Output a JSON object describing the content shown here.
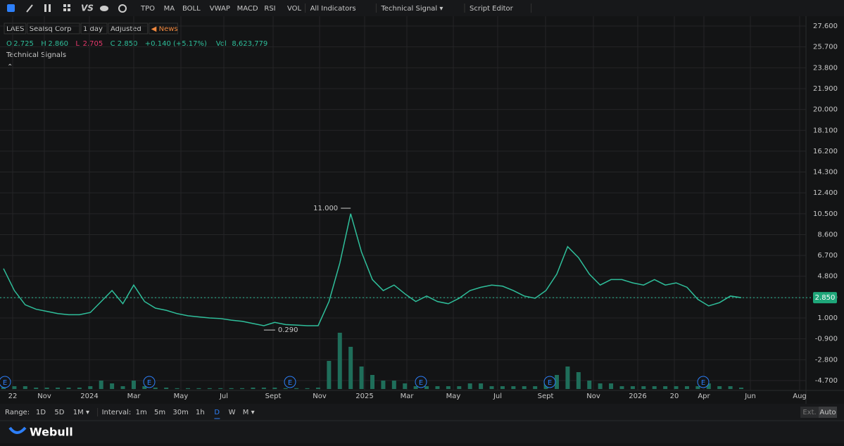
{
  "toolbar": {
    "items": [
      "TPO",
      "MA",
      "BOLL",
      "VWAP",
      "MACD",
      "RSI",
      "VOL",
      "All Indicators",
      "Technical Signal ▾",
      "Script Editor"
    ]
  },
  "info": {
    "symbol": "LAES",
    "name": "Sealsq Corp",
    "period": "1 day",
    "adjust": "Adjusted",
    "news": "News"
  },
  "quote": {
    "o_label": "O",
    "o": "2.725",
    "h_label": "H",
    "h": "2.860",
    "l_label": "L",
    "l": "2.705",
    "c_label": "C",
    "c": "2.850",
    "change": "+0.140 (+5.17%)",
    "vol_label": "Vol",
    "vol": "8,623,779"
  },
  "indicator": "Technical Signals",
  "chart_data": {
    "type": "line",
    "color": "#2fbf9b",
    "volume_color": "#1f6e5a",
    "values": [
      5.5,
      3.5,
      2.2,
      1.8,
      1.6,
      1.4,
      1.3,
      1.3,
      1.5,
      2.5,
      3.5,
      2.3,
      4.0,
      2.5,
      1.9,
      1.7,
      1.4,
      1.2,
      1.1,
      1.0,
      0.95,
      0.8,
      0.7,
      0.5,
      0.3,
      0.6,
      0.4,
      0.35,
      0.3,
      0.3,
      2.5,
      6,
      10.5,
      7,
      4.5,
      3.5,
      4,
      3.2,
      2.5,
      3.0,
      2.5,
      2.3,
      2.8,
      3.5,
      3.8,
      4.0,
      3.9,
      3.5,
      3.0,
      2.8,
      3.5,
      5,
      7.5,
      6.5,
      5,
      4,
      4.5,
      4.5,
      4.2,
      4.0,
      4.5,
      4.0,
      4.2,
      3.8,
      2.7,
      2.1,
      2.4,
      3.0,
      2.85
    ],
    "volume": [
      2,
      1,
      1,
      0.5,
      0.5,
      0.5,
      0.5,
      0.5,
      1,
      3,
      2,
      1,
      3,
      1,
      0.5,
      0.5,
      0.3,
      0.3,
      0.3,
      0.3,
      0.3,
      0.3,
      0.3,
      0.5,
      0.5,
      0.5,
      0.3,
      0.3,
      0.3,
      0.5,
      10,
      20,
      15,
      8,
      5,
      3,
      3,
      2,
      1,
      1,
      1,
      1,
      1,
      2,
      2,
      1,
      1,
      1,
      1,
      1,
      3,
      5,
      8,
      6,
      3,
      2,
      2,
      1,
      1,
      1,
      1,
      1,
      1,
      1,
      1,
      2,
      1,
      1,
      0.5
    ],
    "ylim": [
      -5.6,
      28.5
    ],
    "yticks": [
      {
        "value": 27.6,
        "label": "27.600"
      },
      {
        "value": 25.7,
        "label": "25.700"
      },
      {
        "value": 23.8,
        "label": "23.800"
      },
      {
        "value": 21.9,
        "label": "21.900"
      },
      {
        "value": 20,
        "label": "20.000"
      },
      {
        "value": 18.1,
        "label": "18.100"
      },
      {
        "value": 16.2,
        "label": "16.200"
      },
      {
        "value": 14.3,
        "label": "14.300"
      },
      {
        "value": 12.4,
        "label": "12.400"
      },
      {
        "value": 10.5,
        "label": "10.500"
      },
      {
        "value": 8.6,
        "label": "8.600"
      },
      {
        "value": 6.7,
        "label": "6.700"
      },
      {
        "value": 4.8,
        "label": "4.800"
      },
      {
        "value": 2.85,
        "label": "2.850"
      },
      {
        "value": 1,
        "label": "1.000"
      },
      {
        "value": -0.9,
        "label": "-0.900"
      },
      {
        "value": -2.8,
        "label": "-2.800"
      },
      {
        "value": -4.7,
        "label": "-4.700"
      }
    ],
    "x_labels": [
      "22",
      "Nov",
      "2024",
      "Mar",
      "May",
      "Jul",
      "Sept",
      "Nov",
      "2025",
      "Mar",
      "May",
      "Jul",
      "Sept",
      "Nov",
      "2026",
      "20",
      "Apr",
      "Jun",
      "Aug"
    ],
    "high": {
      "value": 11,
      "label": "11.000"
    },
    "low": {
      "value": 0.29,
      "label": "0.290"
    },
    "earnings": [
      "E",
      "E",
      "E",
      "E",
      "E",
      "E"
    ],
    "last": {
      "value": 2.85,
      "label": "2.850"
    }
  },
  "footer": {
    "range_label": "Range:",
    "ranges": [
      "1D",
      "5D",
      "1M ▾"
    ],
    "interval_label": "Interval:",
    "intervals": [
      "1m",
      "5m",
      "30m",
      "1h",
      "D",
      "W",
      "M ▾"
    ],
    "ext": "Ext.",
    "auto": "Auto",
    "brand": "Webull"
  }
}
